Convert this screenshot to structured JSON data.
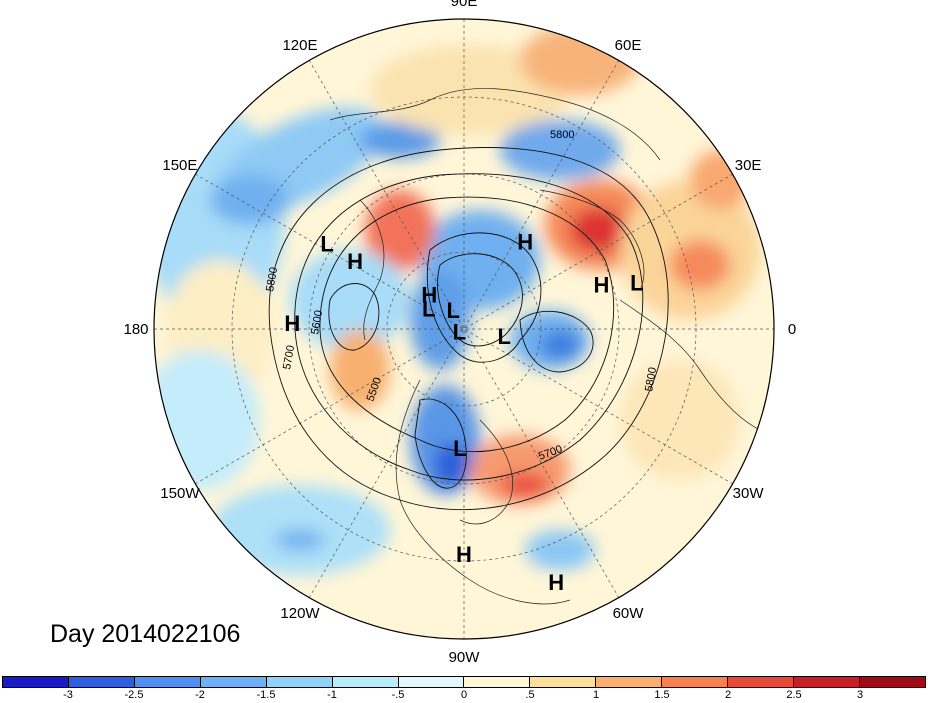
{
  "title": "Day 2014022106",
  "longitude_labels": [
    {
      "text": "90E",
      "lon": 90
    },
    {
      "text": "60E",
      "lon": 60
    },
    {
      "text": "30E",
      "lon": 30
    },
    {
      "text": "0",
      "lon": 0
    },
    {
      "text": "30W",
      "lon": -30
    },
    {
      "text": "60W",
      "lon": -60
    },
    {
      "text": "90W",
      "lon": -90
    },
    {
      "text": "120W",
      "lon": -120
    },
    {
      "text": "150W",
      "lon": -150
    },
    {
      "text": "180",
      "lon": 180
    },
    {
      "text": "150E",
      "lon": 150
    },
    {
      "text": "120E",
      "lon": 120
    }
  ],
  "pressure_centers": [
    {
      "type": "H",
      "lon": 55,
      "lat": 52
    },
    {
      "type": "L",
      "lon": 148,
      "lat": 35
    },
    {
      "type": "H",
      "lon": 148,
      "lat": 45
    },
    {
      "type": "H",
      "lon": 178,
      "lat": 32
    },
    {
      "type": "L",
      "lon": 150,
      "lat": 75
    },
    {
      "type": "H",
      "lon": 135,
      "lat": 72
    },
    {
      "type": "L",
      "lon": 120,
      "lat": 82
    },
    {
      "type": "L",
      "lon": -150,
      "lat": 88
    },
    {
      "type": "L",
      "lon": -10,
      "lat": 75
    },
    {
      "type": "H",
      "lon": 18,
      "lat": 40
    },
    {
      "type": "L",
      "lon": 15,
      "lat": 30
    },
    {
      "type": "L",
      "lon": -92,
      "lat": 48
    },
    {
      "type": "H",
      "lon": -90,
      "lat": 18
    },
    {
      "type": "H",
      "lon": -70,
      "lat": 8
    }
  ],
  "contour_labels": [
    "5800",
    "5800",
    "5600",
    "5700",
    "5500",
    "5800",
    "5700"
  ],
  "colorbar": {
    "levels": [
      "-3",
      "-2.5",
      "-2",
      "-1.5",
      "-1",
      "-.5",
      "0",
      ".5",
      "1",
      "1.5",
      "2",
      "2.5",
      "3"
    ],
    "colors": [
      "#1a1ac8",
      "#2d5ee0",
      "#4f8ff0",
      "#6fb0f5",
      "#8fd2fa",
      "#b8ecfd",
      "#e3f8fd",
      "#fff8d6",
      "#fcdf9a",
      "#f8b070",
      "#f58050",
      "#e84a3a",
      "#c81e28",
      "#a00a18"
    ]
  }
}
